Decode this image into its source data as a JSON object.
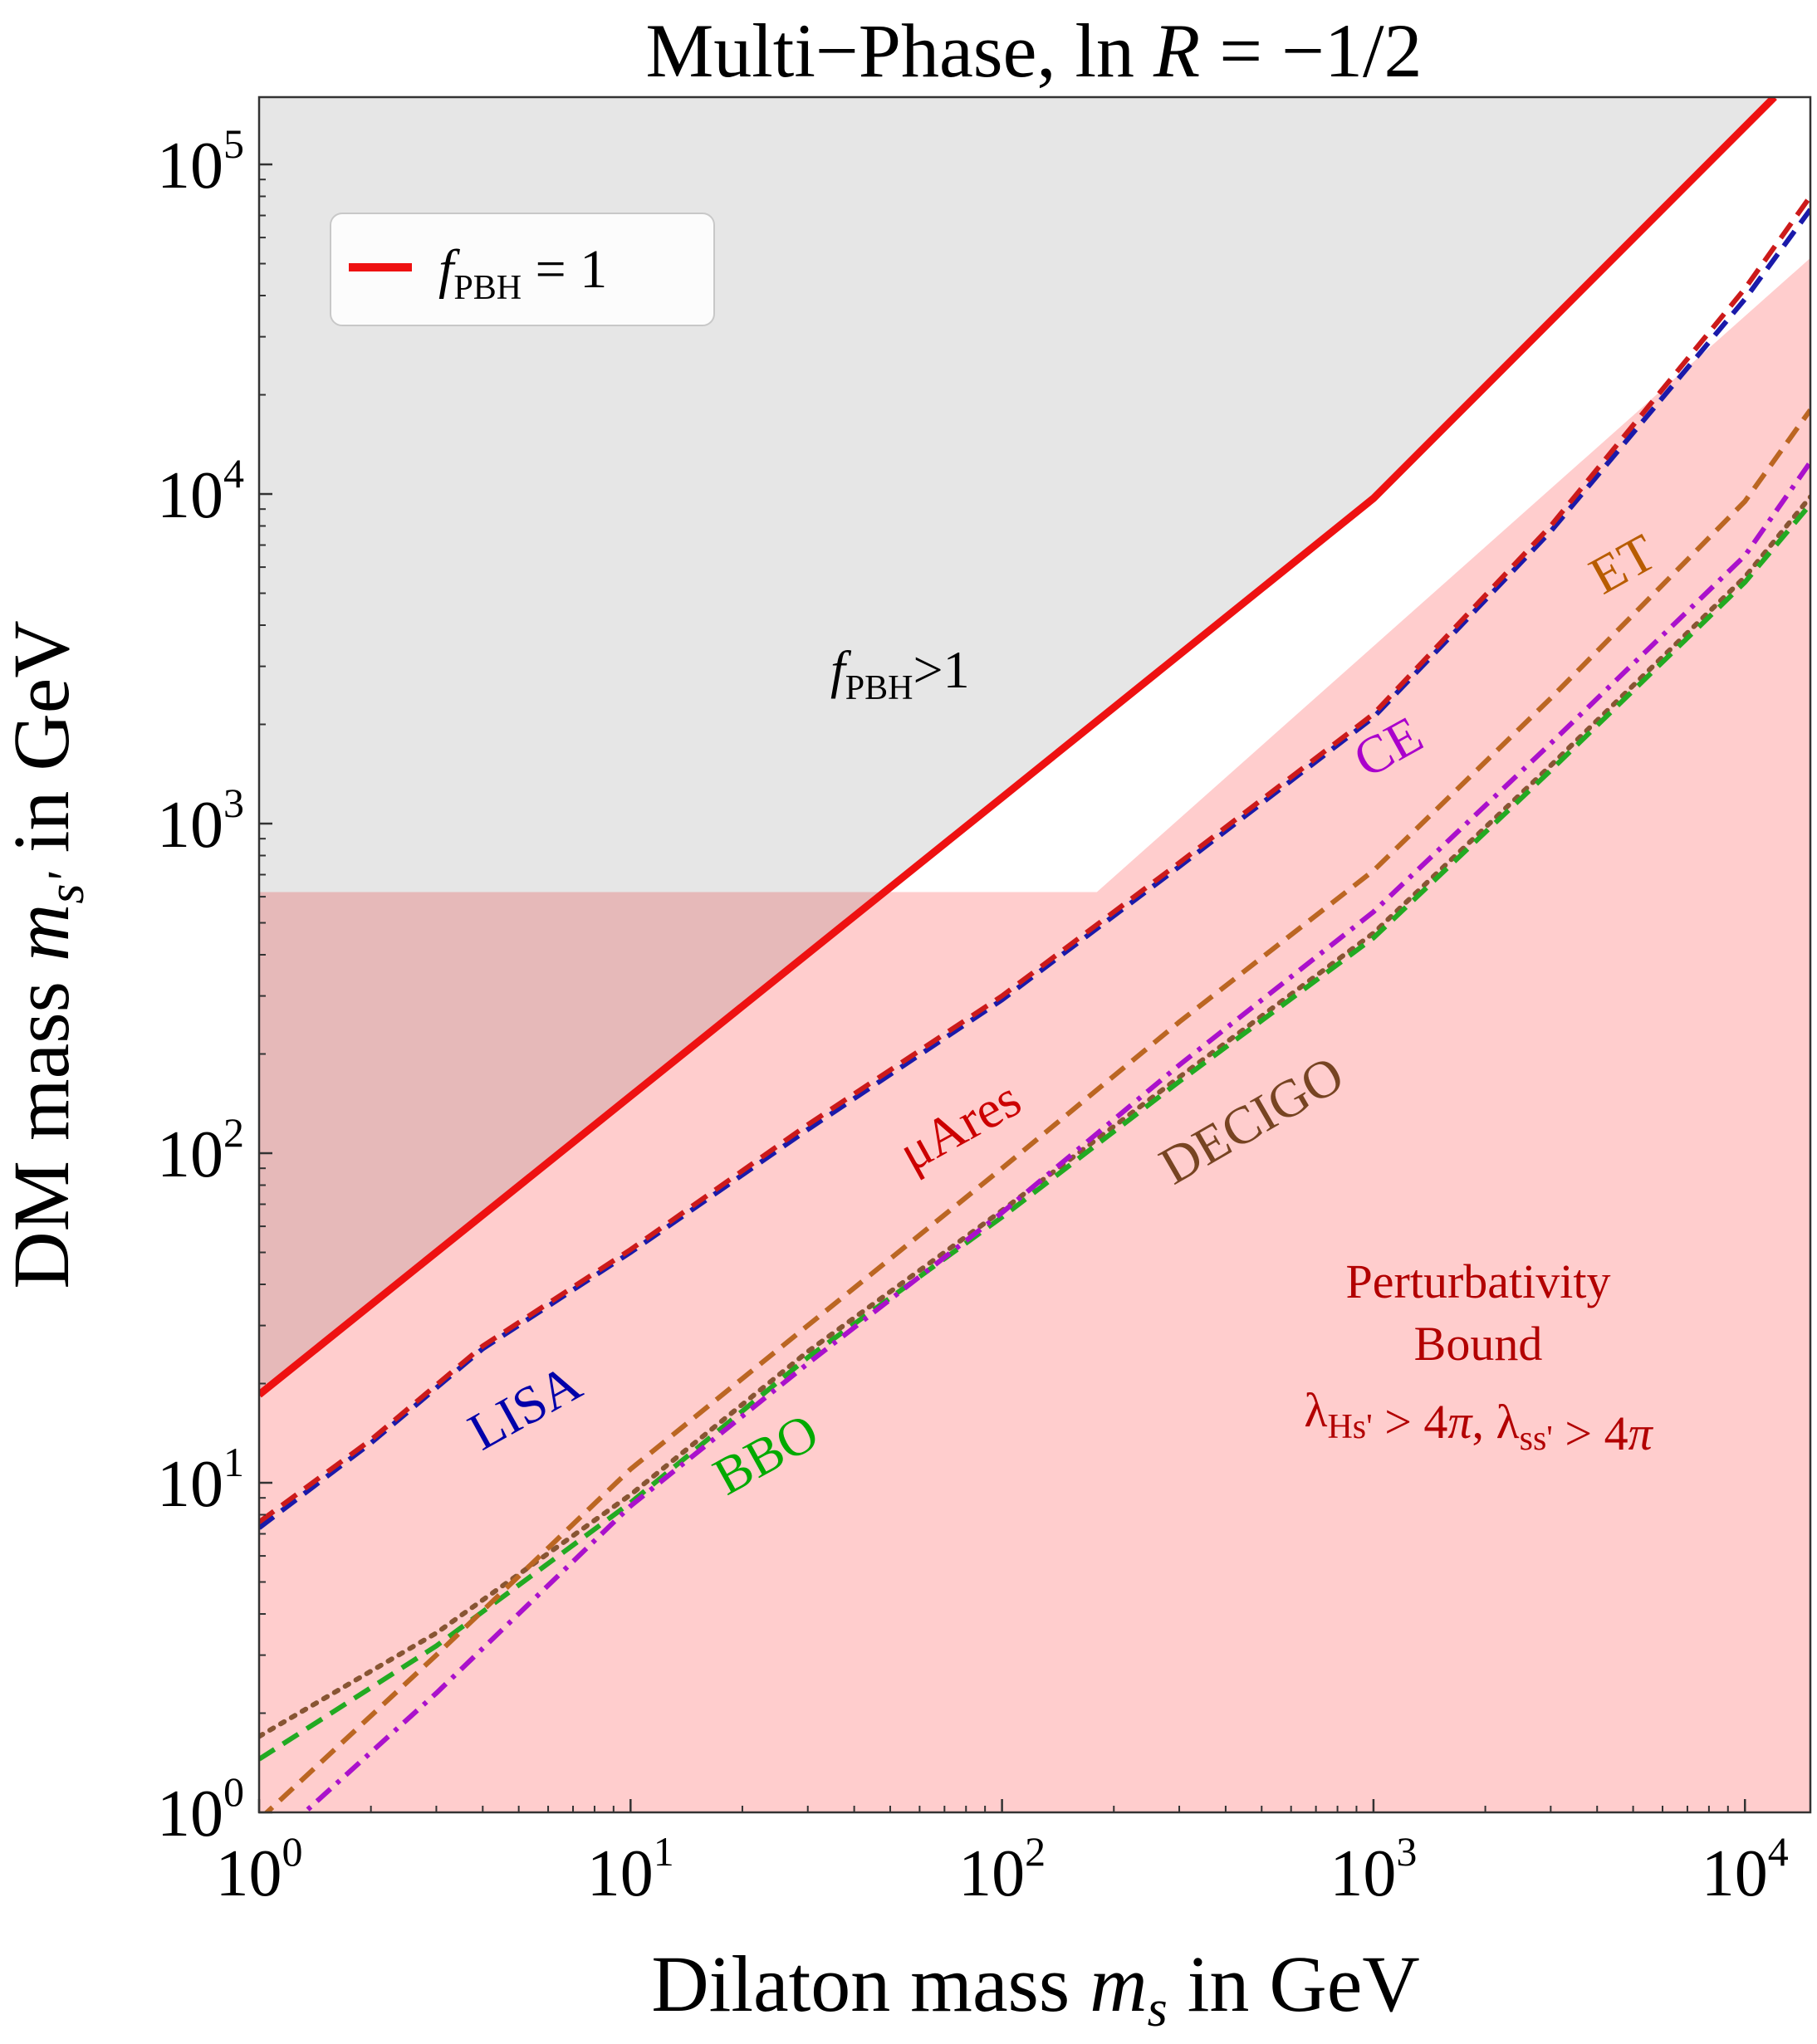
{
  "chart_data": {
    "type": "line",
    "title": {
      "pre": "Multi−Phase, ln ",
      "var": "R",
      "post": " = −1/2"
    },
    "xlabel": {
      "pre": "Dilaton mass ",
      "var": "m",
      "sub": "s",
      "post": " in GeV"
    },
    "ylabel": {
      "pre": "DM mass ",
      "var": "m",
      "sub": "s'",
      "post": " in GeV"
    },
    "xscale": "log",
    "yscale": "log",
    "xlim": [
      1,
      15000
    ],
    "ylim": [
      1,
      160000
    ],
    "x_ticks": [
      {
        "value": 1,
        "base": "10",
        "exp": "0"
      },
      {
        "value": 10,
        "base": "10",
        "exp": "1"
      },
      {
        "value": 100,
        "base": "10",
        "exp": "2"
      },
      {
        "value": 1000,
        "base": "10",
        "exp": "3"
      },
      {
        "value": 10000,
        "base": "10",
        "exp": "4"
      }
    ],
    "y_ticks": [
      {
        "value": 1,
        "base": "10",
        "exp": "0"
      },
      {
        "value": 10,
        "base": "10",
        "exp": "1"
      },
      {
        "value": 100,
        "base": "10",
        "exp": "2"
      },
      {
        "value": 1000,
        "base": "10",
        "exp": "3"
      },
      {
        "value": 10000,
        "base": "10",
        "exp": "4"
      },
      {
        "value": 100000,
        "base": "10",
        "exp": "5"
      }
    ],
    "legend": {
      "position": "top-left",
      "entries": [
        {
          "var": "f",
          "sub": "PBH",
          "post": " = 1",
          "color": "#ee1111"
        }
      ]
    },
    "regions": [
      {
        "name": "fpbh-excluded",
        "color": "#e6e6e6",
        "label": {
          "var": "f",
          "sub": "PBH",
          "post": ">1"
        },
        "lower_boundary": "fPBH = 1 line"
      },
      {
        "name": "perturbativity-bound",
        "color": "#ffc8c8",
        "label_lines": [
          "Perturbativity",
          "Bound"
        ],
        "label_formula": [
          {
            "t": "λ",
            "sub": "Hs'"
          },
          {
            "t": " > 4"
          },
          {
            "t": "π",
            "italic": true
          },
          {
            "t": ", λ",
            "sub": "ss'"
          },
          {
            "t": " > 4"
          },
          {
            "t": "π",
            "italic": true
          }
        ],
        "boundary": [
          [
            1,
            620
          ],
          [
            180,
            620
          ],
          [
            15000,
            52000
          ]
        ]
      }
    ],
    "series": [
      {
        "name": "fPBH = 1",
        "color": "#ee1111",
        "style": "solid",
        "points": [
          [
            1,
            18.5
          ],
          [
            10,
            149
          ],
          [
            100,
            1200
          ],
          [
            1000,
            9700
          ],
          [
            12000,
            160000
          ]
        ]
      },
      {
        "name": "μAres",
        "label": "μAres",
        "label_color": "#cc0000",
        "color": "#cc1a1a",
        "style": "dashed",
        "points": [
          [
            1,
            7.6
          ],
          [
            2,
            13.5
          ],
          [
            4,
            26
          ],
          [
            10,
            51
          ],
          [
            30,
            122
          ],
          [
            100,
            300
          ],
          [
            300,
            760
          ],
          [
            1000,
            2150
          ],
          [
            3000,
            8000
          ],
          [
            10000,
            42000
          ],
          [
            15000,
            80000
          ]
        ]
      },
      {
        "name": "LISA",
        "label": "LISA",
        "label_color": "#0000aa",
        "color": "#1a1aaa",
        "style": "dashed",
        "points": [
          [
            1,
            7.3
          ],
          [
            2,
            13.2
          ],
          [
            4,
            25.5
          ],
          [
            10,
            50
          ],
          [
            30,
            118
          ],
          [
            100,
            292
          ],
          [
            300,
            740
          ],
          [
            1000,
            2100
          ],
          [
            3000,
            7700
          ],
          [
            10000,
            39000
          ],
          [
            15000,
            73000
          ]
        ]
      },
      {
        "name": "ET",
        "label": "ET",
        "label_color": "#b85c00",
        "color": "#bb6622",
        "style": "dashed",
        "points": [
          [
            1,
            0.95
          ],
          [
            3,
            3
          ],
          [
            10,
            11
          ],
          [
            30,
            30
          ],
          [
            100,
            90
          ],
          [
            300,
            250
          ],
          [
            1000,
            720
          ],
          [
            3000,
            2400
          ],
          [
            10000,
            9500
          ],
          [
            15000,
            18000
          ]
        ]
      },
      {
        "name": "CE",
        "label": "CE",
        "label_color": "#aa00cc",
        "color": "#aa11cc",
        "style": "dashdot",
        "points": [
          [
            1,
            0.75
          ],
          [
            3,
            2.3
          ],
          [
            10,
            8.5
          ],
          [
            30,
            23
          ],
          [
            100,
            66
          ],
          [
            300,
            185
          ],
          [
            1000,
            540
          ],
          [
            3000,
            1750
          ],
          [
            10000,
            6500
          ],
          [
            15000,
            12500
          ]
        ]
      },
      {
        "name": "BBO",
        "label": "BBO",
        "label_color": "#00aa00",
        "color": "#22aa22",
        "style": "dashed",
        "points": [
          [
            1,
            1.45
          ],
          [
            3,
            3.2
          ],
          [
            10,
            8.7
          ],
          [
            30,
            24
          ],
          [
            100,
            64
          ],
          [
            300,
            165
          ],
          [
            1000,
            450
          ],
          [
            3000,
            1450
          ],
          [
            10000,
            5400
          ],
          [
            15000,
            9300
          ]
        ]
      },
      {
        "name": "DECIGO",
        "label": "DECIGO",
        "label_color": "#774422",
        "color": "#885533",
        "style": "dotted",
        "points": [
          [
            1,
            1.7
          ],
          [
            3,
            3.5
          ],
          [
            10,
            9.2
          ],
          [
            30,
            25
          ],
          [
            100,
            67
          ],
          [
            300,
            170
          ],
          [
            1000,
            465
          ],
          [
            3000,
            1500
          ],
          [
            10000,
            5600
          ],
          [
            15000,
            9800
          ]
        ]
      }
    ]
  }
}
